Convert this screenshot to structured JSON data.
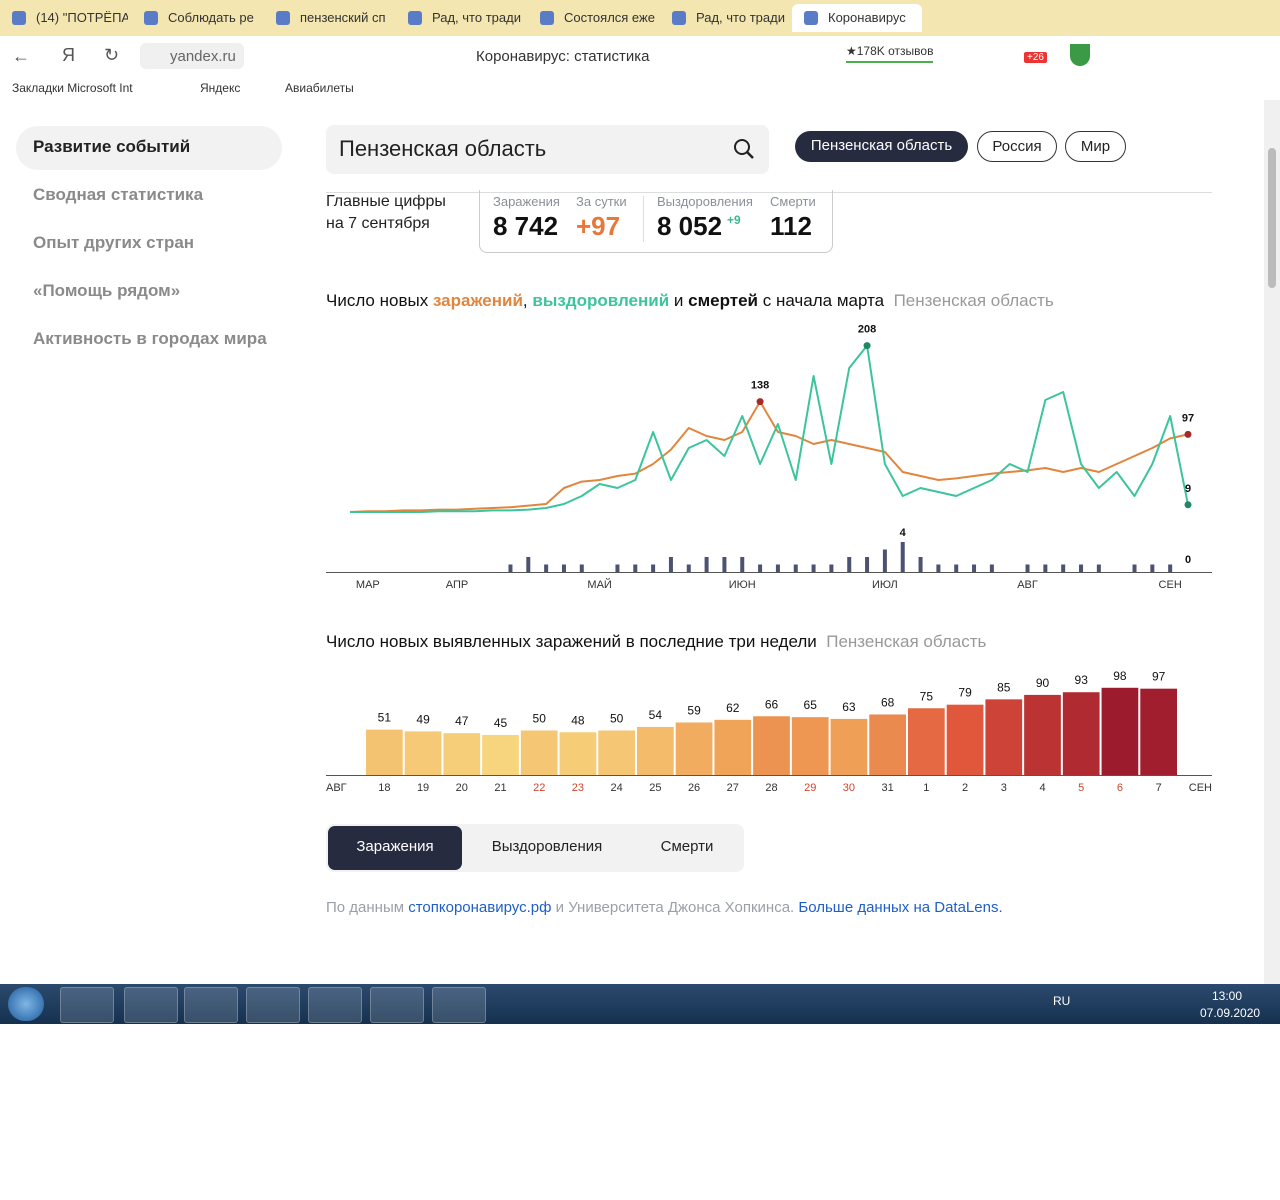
{
  "browser": {
    "tabs": [
      "(14) \"ПОТРЁПА",
      "Соблюдать ре",
      "пензенский сп",
      "Рад, что тради",
      "Состоялся еже",
      "Рад, что тради",
      "Коронавирус"
    ],
    "address": "yandex.ru",
    "page_title": "Коронавирус: статистика",
    "reviews": "★178K отзывов",
    "badge": "+26",
    "bookmarks": [
      "Закладки Microsoft Int",
      "Яндекс",
      "Авиабилеты"
    ]
  },
  "sidebar": {
    "items": [
      "Развитие событий",
      "Сводная статистика",
      "Опыт других стран",
      "«Помощь рядом»",
      "Активность в городах мира"
    ]
  },
  "search": {
    "query": "Пензенская область",
    "regions": [
      "Пензенская область",
      "Россия",
      "Мир"
    ]
  },
  "summary": {
    "caption": [
      "Главные цифры",
      "на 7 сентября"
    ],
    "labels": [
      "Заражения",
      "За сутки",
      "Выздоровления",
      "Смерти"
    ],
    "cases": "8 742",
    "cases_day": "+97",
    "recovered": "8 052",
    "recovered_day": "+9",
    "deaths": "112"
  },
  "chart_data": [
    {
      "type": "line",
      "title_parts": [
        "Число новых ",
        ", ",
        " и ",
        " с начала марта"
      ],
      "subtitle": "Пензенская область",
      "categories": [
        null,
        "МАР",
        null,
        null,
        null,
        null,
        "АПР",
        null,
        null,
        null,
        null,
        null,
        null,
        null,
        "МАЙ",
        null,
        null,
        null,
        null,
        null,
        null,
        null,
        "ИЮН",
        null,
        null,
        null,
        null,
        null,
        null,
        null,
        "ИЮЛ",
        null,
        null,
        null,
        null,
        null,
        null,
        null,
        "АВГ",
        null,
        null,
        null,
        null,
        null,
        null,
        null,
        "СЕН",
        null
      ],
      "series": [
        {
          "name": "заражений",
          "color": "#e0863e",
          "values": [
            0,
            1,
            1,
            2,
            2,
            3,
            3,
            4,
            5,
            6,
            8,
            10,
            30,
            38,
            40,
            45,
            48,
            60,
            78,
            105,
            95,
            90,
            100,
            138,
            100,
            95,
            85,
            90,
            85,
            80,
            75,
            50,
            45,
            40,
            42,
            45,
            48,
            50,
            52,
            55,
            50,
            55,
            50,
            60,
            70,
            80,
            92,
            97
          ]
        },
        {
          "name": "выздоровлений",
          "color": "#3cc49c",
          "values": [
            0,
            0,
            0,
            0,
            0,
            1,
            1,
            1,
            2,
            2,
            3,
            5,
            10,
            20,
            35,
            30,
            40,
            100,
            40,
            80,
            90,
            70,
            120,
            60,
            110,
            40,
            170,
            60,
            180,
            208,
            60,
            20,
            30,
            25,
            20,
            30,
            40,
            60,
            50,
            140,
            150,
            60,
            30,
            50,
            20,
            60,
            120,
            9
          ]
        },
        {
          "name": "смертей",
          "color": "#4d5270",
          "type": "bar",
          "axis": "y2",
          "values": [
            0,
            0,
            0,
            0,
            0,
            0,
            0,
            0,
            0,
            1,
            2,
            1,
            1,
            1,
            0,
            1,
            1,
            1,
            2,
            1,
            2,
            2,
            2,
            1,
            1,
            1,
            1,
            1,
            2,
            2,
            3,
            4,
            2,
            1,
            1,
            1,
            1,
            0,
            1,
            1,
            1,
            1,
            1,
            0,
            1,
            1,
            1,
            0
          ]
        }
      ],
      "ylim": [
        0,
        210
      ],
      "y2lim": [
        0,
        4
      ]
    },
    {
      "type": "bar",
      "title": "Число новых выявленных заражений в последние три недели",
      "subtitle": "Пензенская область",
      "period_labels": [
        "АВГ",
        "СЕН"
      ],
      "categories": [
        "18",
        "19",
        "20",
        "21",
        "22",
        "23",
        "24",
        "25",
        "26",
        "27",
        "28",
        "29",
        "30",
        "31",
        "1",
        "2",
        "3",
        "4",
        "5",
        "6",
        "7"
      ],
      "values": [
        51,
        49,
        47,
        45,
        50,
        48,
        50,
        54,
        59,
        62,
        66,
        65,
        63,
        68,
        75,
        79,
        85,
        90,
        93,
        98,
        97
      ],
      "colors": [
        "#f7d47e",
        "#efa257",
        "#e0513a",
        "#9c1b2d"
      ],
      "weekend_indices": [
        4,
        5,
        11,
        12,
        18,
        19
      ],
      "weekend_color": "#d0452d",
      "ylim": [
        0,
        100
      ]
    }
  ],
  "switch": [
    "Заражения",
    "Выздоровления",
    "Смерти"
  ],
  "footer": [
    "По данным ",
    "стопкоронавирус.рф",
    " и Университета Джонса Хопкинса. ",
    "Больше данных на DataLens."
  ],
  "taskbar": {
    "lang": "RU",
    "time": "13:00",
    "date": "07.09.2020"
  }
}
